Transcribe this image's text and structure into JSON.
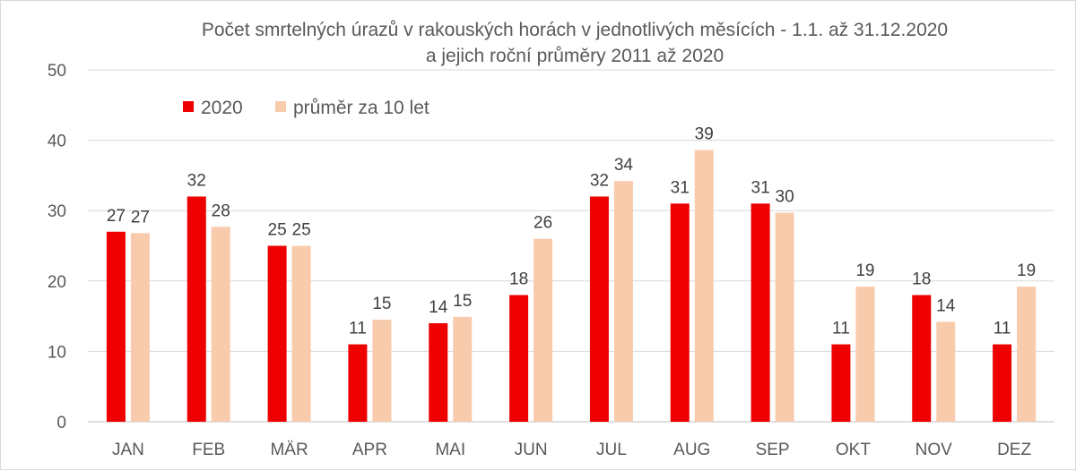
{
  "chart_data": {
    "type": "bar",
    "title": "Počet smrtelných úrazů v rakouských horách v jednotlivých měsících - 1.1. až 31.12.2020",
    "subtitle": "a jejich roční průměry 2011 až 2020",
    "xlabel": "",
    "ylabel": "",
    "ylim": [
      0,
      50
    ],
    "yticks": [
      0,
      10,
      20,
      30,
      40,
      50
    ],
    "grid": true,
    "legend_position": "top-left",
    "categories": [
      "JAN",
      "FEB",
      "MÄR",
      "APR",
      "MAI",
      "JUN",
      "JUL",
      "AUG",
      "SEP",
      "OKT",
      "NOV",
      "DEZ"
    ],
    "series": [
      {
        "name": "2020",
        "color": "#ee0000",
        "values": [
          27,
          32,
          25,
          11,
          14,
          18,
          32,
          31,
          31,
          11,
          18,
          11
        ],
        "labels": [
          "27",
          "32",
          "25",
          "11",
          "14",
          "18",
          "32",
          "31",
          "31",
          "11",
          "18",
          "11"
        ]
      },
      {
        "name": "průměr za 10 let",
        "color": "#f8cbad",
        "values": [
          26.8,
          27.7,
          25,
          14.5,
          14.9,
          26,
          34.2,
          38.6,
          29.7,
          19.2,
          14.2,
          19.2
        ],
        "labels": [
          "27",
          "28",
          "25",
          "15",
          "15",
          "26",
          "34",
          "39",
          "30",
          "19",
          "14",
          "19"
        ]
      }
    ]
  }
}
